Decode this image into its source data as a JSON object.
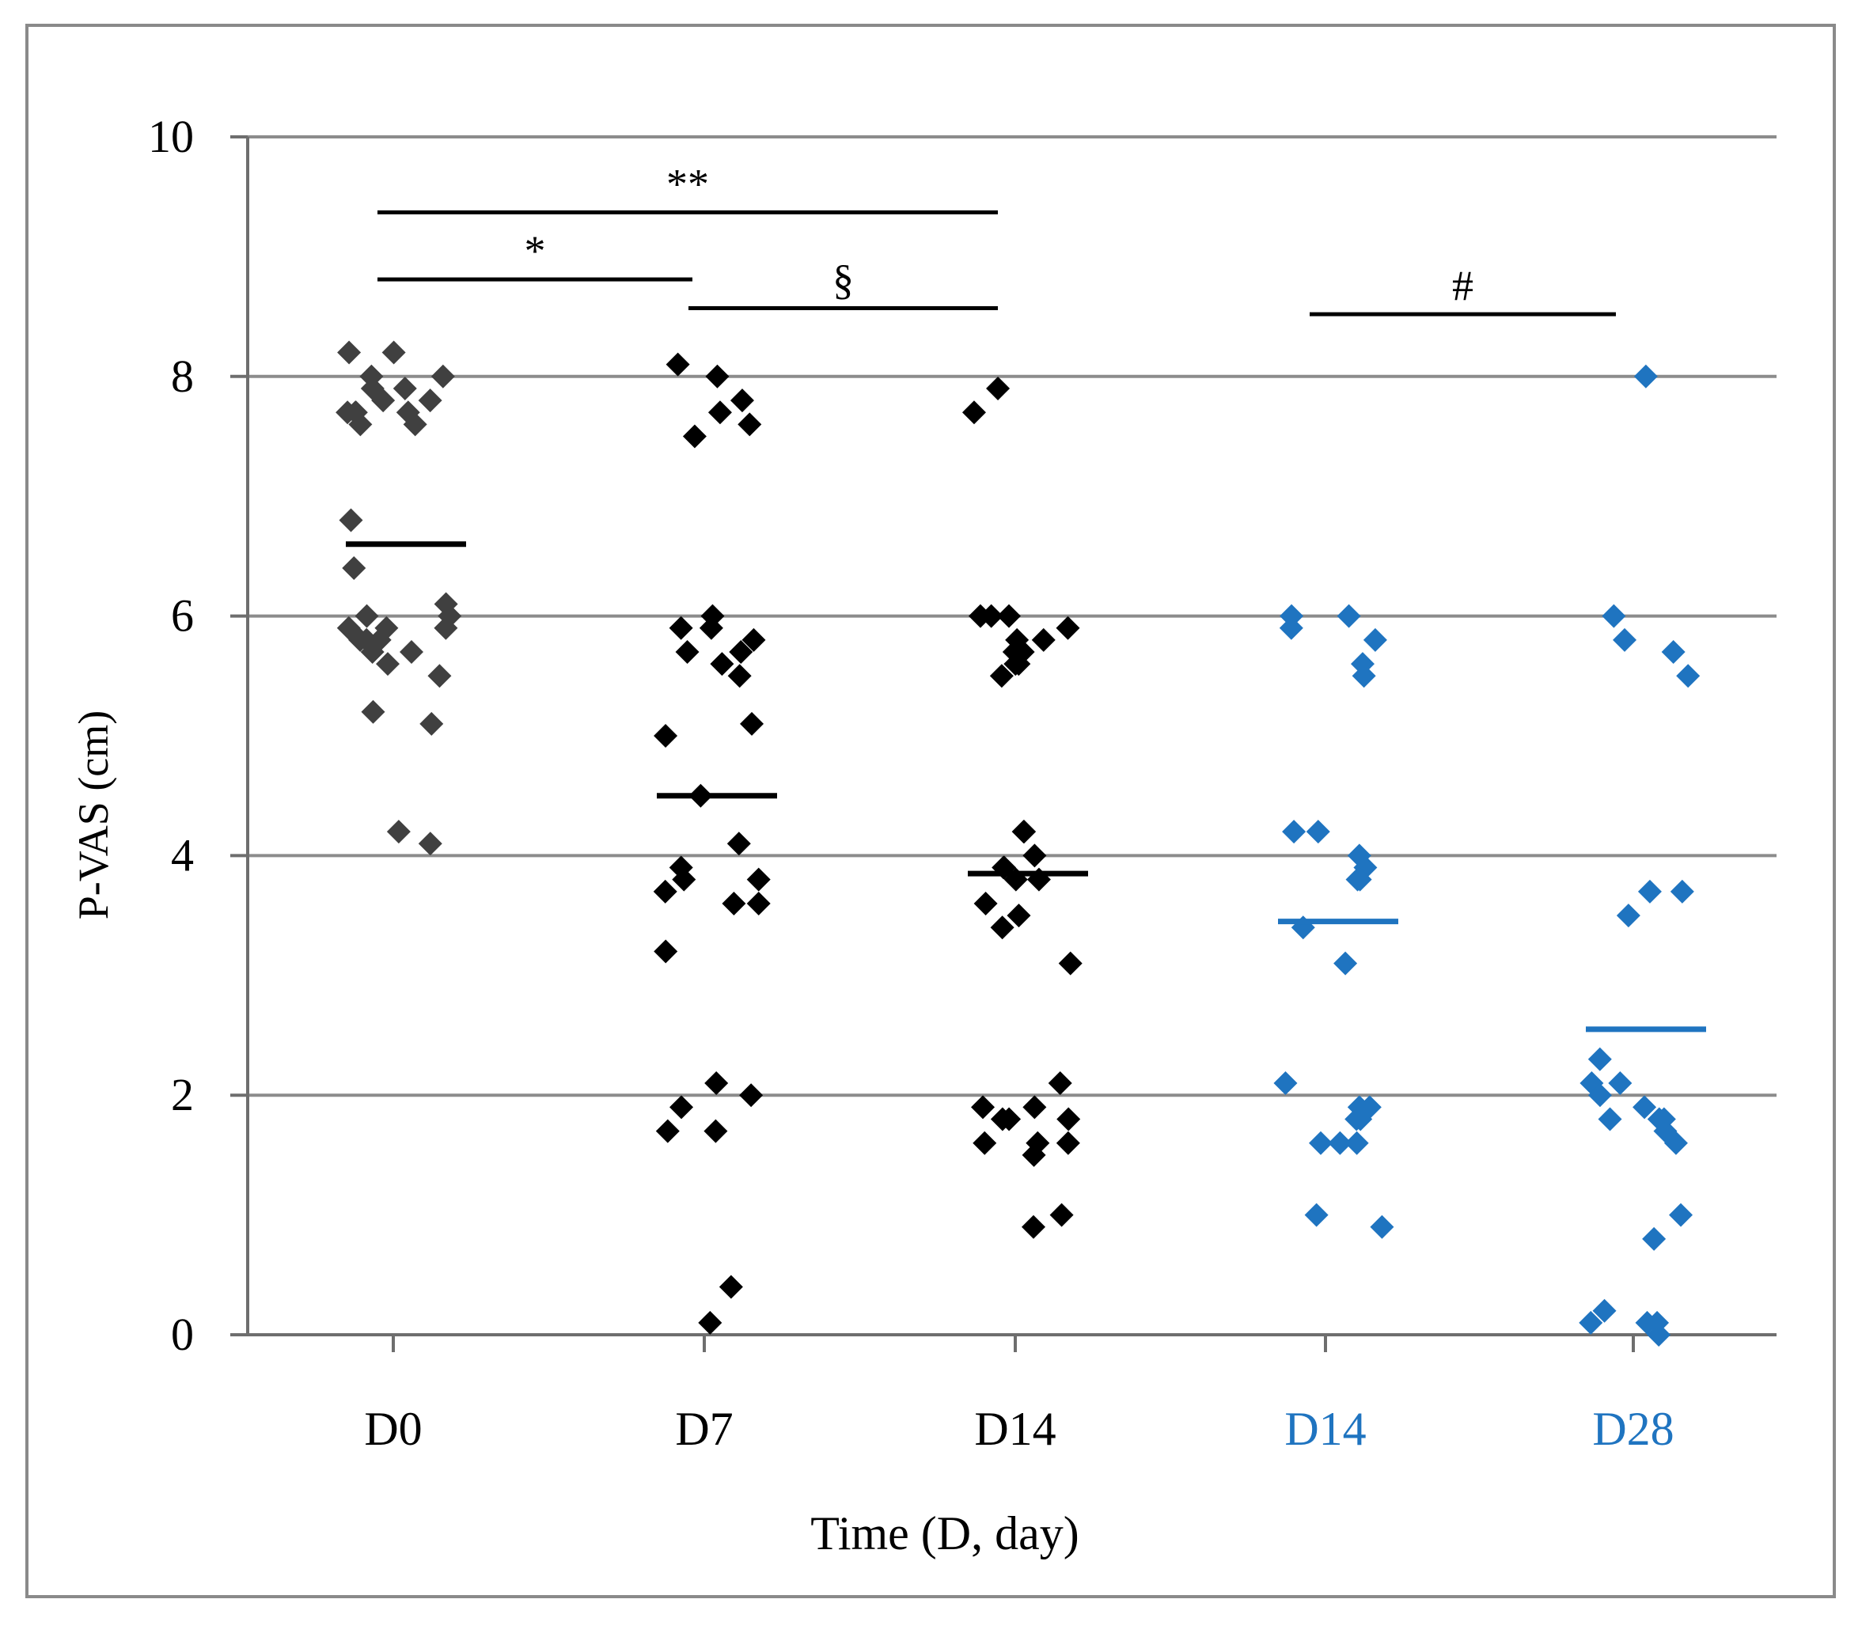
{
  "chart_data": {
    "type": "scatter",
    "ylabel": "P-VAS (cm)",
    "xlabel": "Time (D, day)",
    "ylim": [
      0,
      10
    ],
    "yticks": [
      "0",
      "2",
      "4",
      "6",
      "8",
      "10"
    ],
    "grid": true,
    "colors": {
      "group1": "#000000",
      "group2": "#1f74c0",
      "d0_marker": "#404040",
      "gridline": "#8c8c8c",
      "axis": "#6e6e6e"
    },
    "categories": [
      "D0",
      "D7",
      "D14",
      "D14",
      "D28"
    ],
    "series": [
      {
        "name": "D0",
        "group": 1,
        "color": "#404040",
        "mean": 6.6,
        "values": [
          8.2,
          8.2,
          8.0,
          8.0,
          7.9,
          7.9,
          7.8,
          7.8,
          7.7,
          7.7,
          7.7,
          7.7,
          7.6,
          7.6,
          6.8,
          6.4,
          6.1,
          6.0,
          6.0,
          5.9,
          5.9,
          5.9,
          5.8,
          5.8,
          5.8,
          5.8,
          5.7,
          5.7,
          5.6,
          5.5,
          5.2,
          5.1,
          4.2,
          4.1
        ]
      },
      {
        "name": "D7",
        "group": 1,
        "color": "#000000",
        "mean": 4.5,
        "values": [
          8.1,
          8.0,
          7.8,
          7.7,
          7.6,
          7.5,
          6.0,
          5.9,
          5.9,
          5.8,
          5.7,
          5.7,
          5.6,
          5.5,
          5.1,
          5.0,
          4.5,
          4.1,
          3.9,
          3.8,
          3.8,
          3.7,
          3.6,
          3.6,
          3.2,
          2.1,
          2.0,
          1.9,
          1.7,
          1.7,
          0.4,
          0.1
        ]
      },
      {
        "name": "D14",
        "group": 1,
        "color": "#000000",
        "mean": 3.85,
        "values": [
          7.9,
          7.7,
          6.0,
          6.0,
          6.0,
          5.9,
          5.8,
          5.8,
          5.7,
          5.7,
          5.6,
          5.6,
          5.5,
          4.2,
          4.2,
          4.0,
          3.9,
          3.9,
          3.8,
          3.8,
          3.6,
          3.5,
          3.4,
          3.1,
          2.1,
          1.9,
          1.9,
          1.8,
          1.8,
          1.8,
          1.6,
          1.6,
          1.6,
          1.5,
          1.0,
          0.9
        ]
      },
      {
        "name": "D14",
        "group": 2,
        "color": "#1f74c0",
        "mean": 3.45,
        "values": [
          6.0,
          6.0,
          5.9,
          5.8,
          5.6,
          5.5,
          4.2,
          4.2,
          4.0,
          3.9,
          3.8,
          3.8,
          3.4,
          3.1,
          2.1,
          1.9,
          1.9,
          1.8,
          1.8,
          1.6,
          1.6,
          1.6,
          1.0,
          0.9
        ]
      },
      {
        "name": "D28",
        "group": 2,
        "color": "#1f74c0",
        "mean": 2.55,
        "values": [
          8.0,
          6.0,
          5.8,
          5.7,
          5.5,
          3.7,
          3.7,
          3.5,
          2.3,
          2.1,
          2.1,
          2.0,
          1.9,
          1.8,
          1.8,
          1.8,
          1.7,
          1.6,
          1.0,
          0.8,
          0.2,
          0.1,
          0.1,
          0.1,
          0.0
        ]
      }
    ],
    "significance": [
      {
        "label": "**",
        "from": 0,
        "to": 2,
        "level": 9.37
      },
      {
        "label": "*",
        "from": 0,
        "to": 1,
        "level": 8.81
      },
      {
        "label": "§",
        "from": 1,
        "to": 2,
        "level": 8.57
      },
      {
        "label": "#",
        "from": 3,
        "to": 4,
        "level": 8.52
      }
    ]
  }
}
